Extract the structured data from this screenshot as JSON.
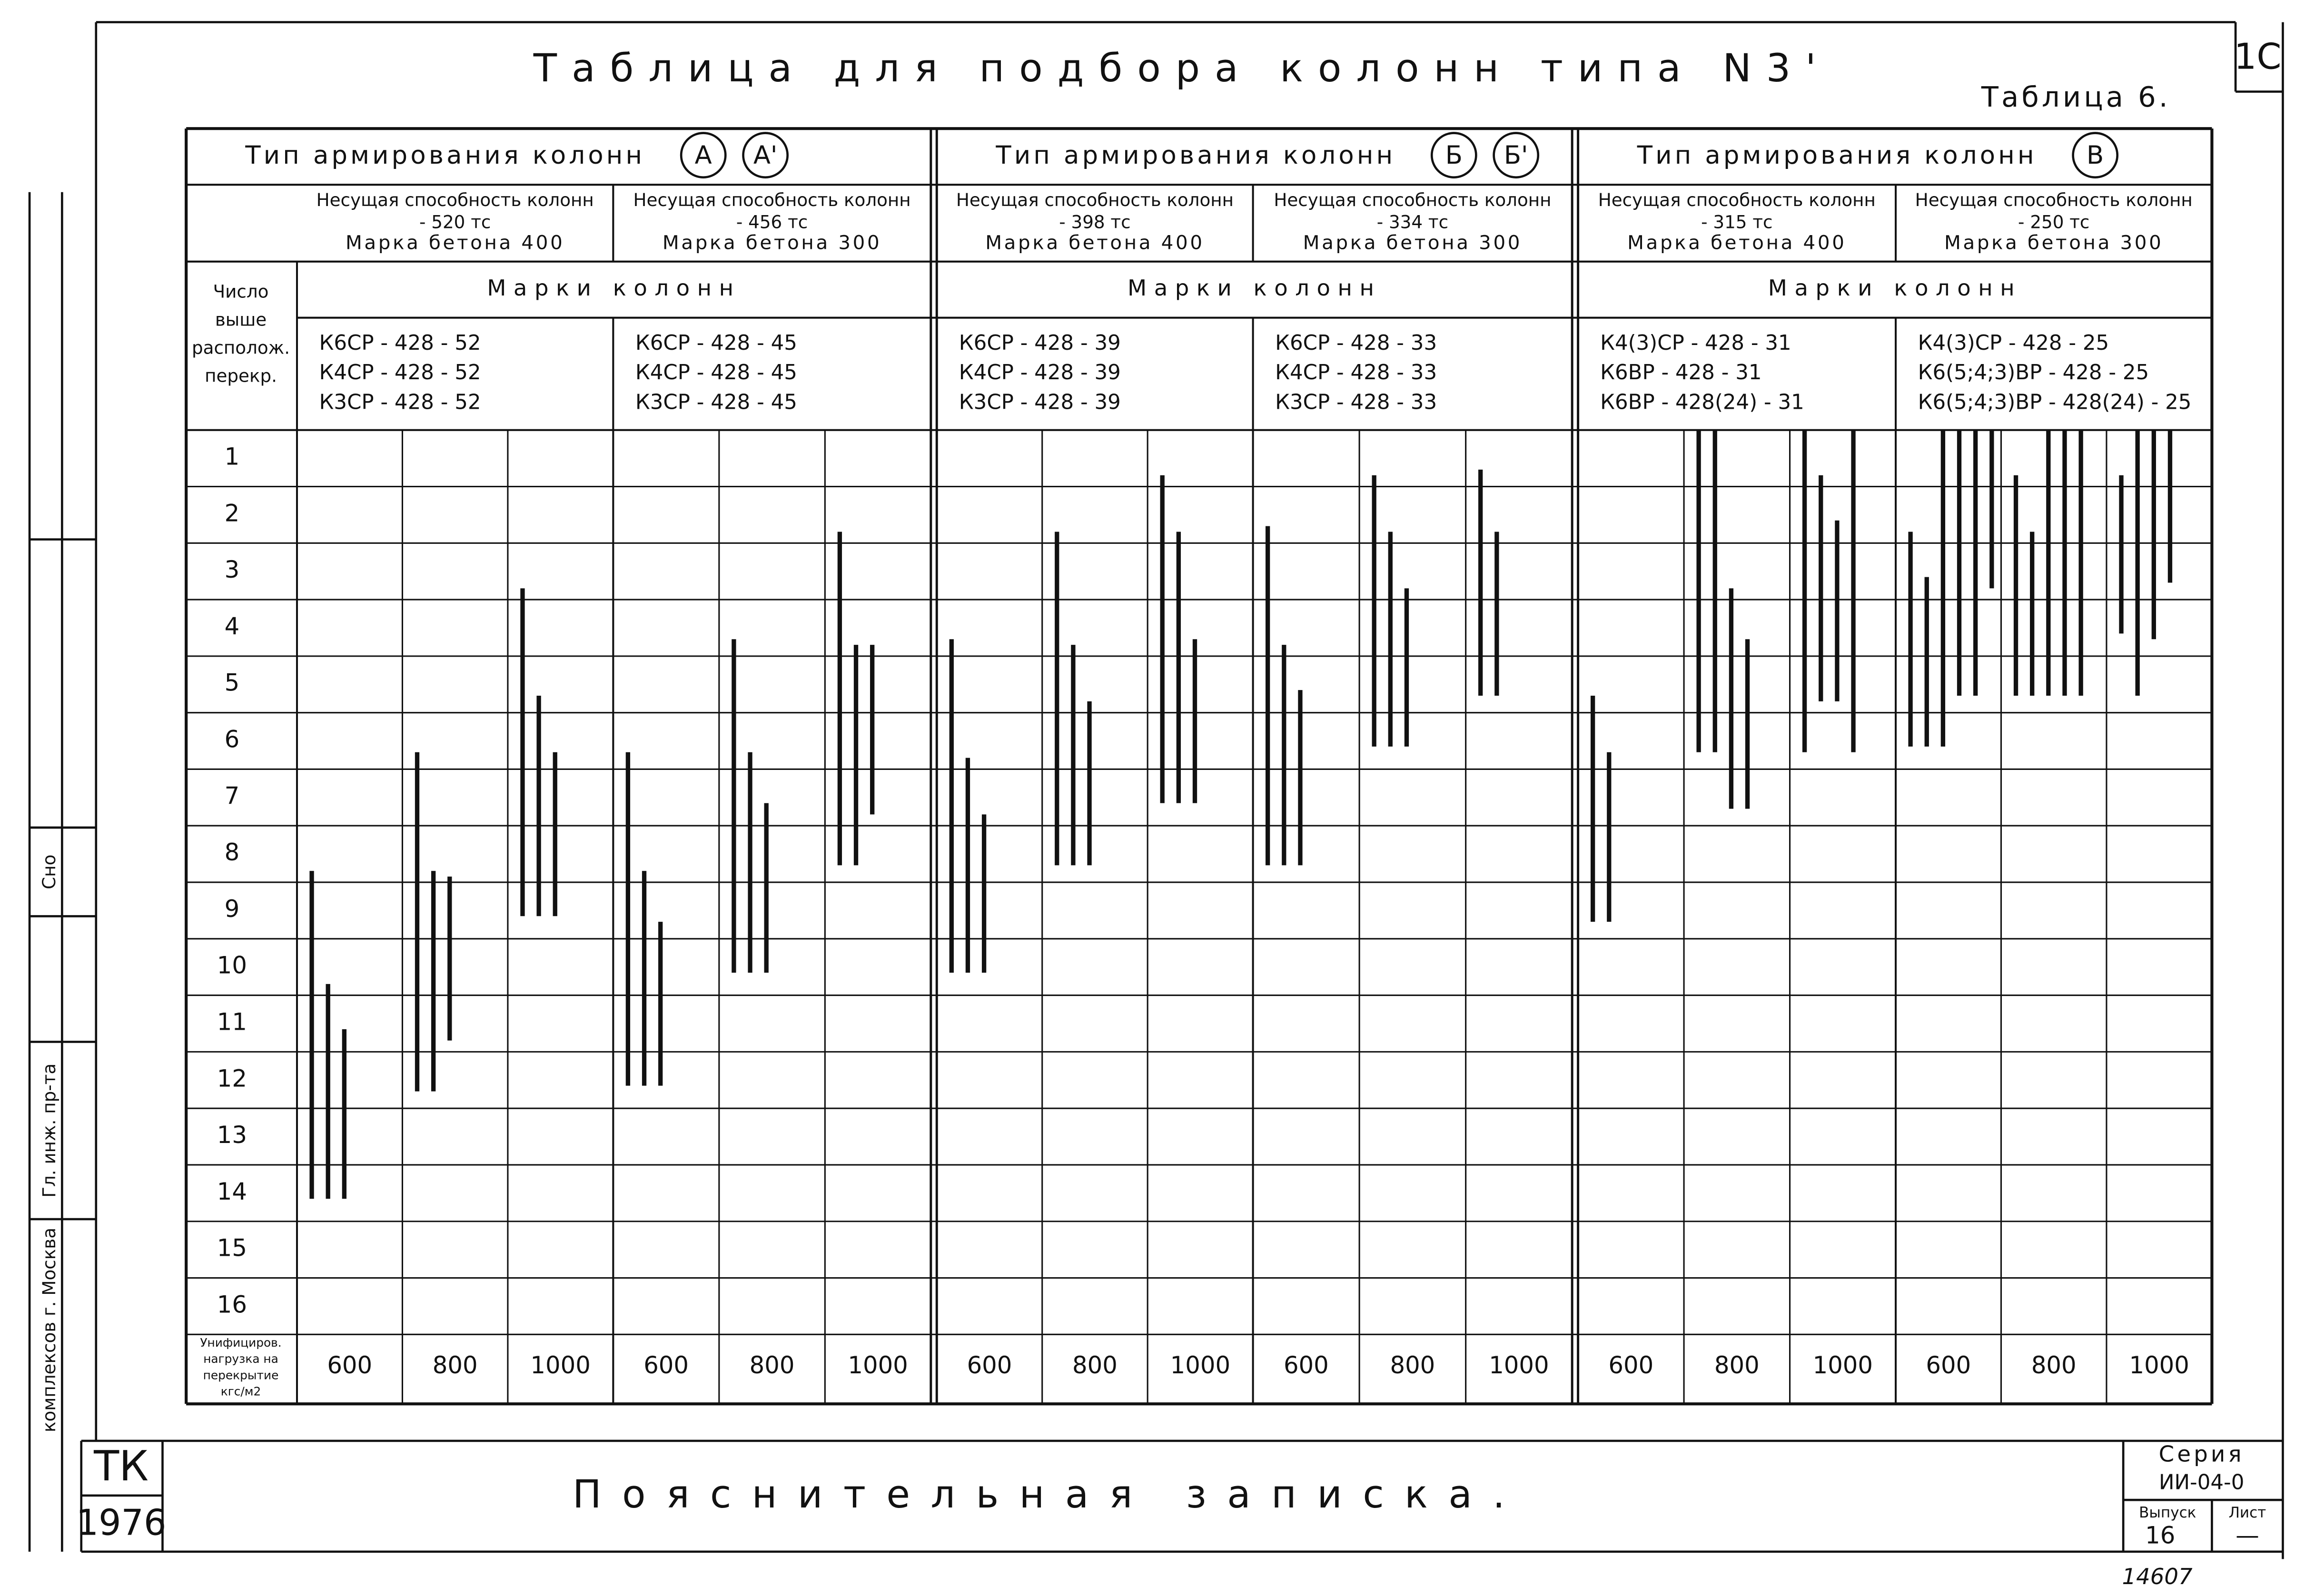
{
  "header": {
    "title": "Таблица для подбора колонн типа N3'",
    "sheet": "1С",
    "table_no": "Таблица 6."
  },
  "table": {
    "row_header": [
      "Число",
      "выше",
      "располож.",
      "перекр."
    ],
    "rows": [
      1,
      2,
      3,
      4,
      5,
      6,
      7,
      8,
      9,
      10,
      11,
      12,
      13,
      14,
      15,
      16
    ],
    "load_header": [
      "Унифициров.",
      "нагрузка на",
      "перекрытие",
      "кгс/м2"
    ],
    "groups": [
      {
        "title": "Тип армирования колонн",
        "types": [
          "А",
          "А'"
        ],
        "marks_title": "Марки колонн",
        "blocks": [
          {
            "capacity_label": "Несущая способность колонн",
            "capacity": "- 520 тс",
            "concrete": "Марка бетона 400",
            "marks": [
              "К6СР - 428 - 52",
              "К4СР - 428 - 52",
              "К3СР - 428 - 52"
            ],
            "loads": [
              {
                "value": 600,
                "bars": [
                  [
                    7.8,
                    13.6
                  ],
                  [
                    9.8,
                    13.6
                  ],
                  [
                    10.6,
                    13.6
                  ]
                ]
              },
              {
                "value": 800,
                "bars": [
                  [
                    5.7,
                    11.7
                  ],
                  [
                    7.8,
                    11.7
                  ],
                  [
                    7.9,
                    10.8
                  ]
                ]
              },
              {
                "value": 1000,
                "bars": [
                  [
                    2.8,
                    8.6
                  ],
                  [
                    4.7,
                    8.6
                  ],
                  [
                    5.7,
                    8.6
                  ]
                ]
              }
            ]
          },
          {
            "capacity_label": "Несущая способность колонн",
            "capacity": "- 456 тс",
            "concrete": "Марка бетона 300",
            "marks": [
              "К6СР - 428 - 45",
              "К4СР - 428 - 45",
              "К3СР - 428 - 45"
            ],
            "loads": [
              {
                "value": 600,
                "bars": [
                  [
                    5.7,
                    11.6
                  ],
                  [
                    7.8,
                    11.6
                  ],
                  [
                    8.7,
                    11.6
                  ]
                ]
              },
              {
                "value": 800,
                "bars": [
                  [
                    3.7,
                    9.6
                  ],
                  [
                    5.7,
                    9.6
                  ],
                  [
                    6.6,
                    9.6
                  ]
                ]
              },
              {
                "value": 1000,
                "bars": [
                  [
                    1.8,
                    7.7
                  ],
                  [
                    3.8,
                    7.7
                  ],
                  [
                    3.8,
                    6.8
                  ]
                ]
              }
            ]
          }
        ]
      },
      {
        "title": "Тип армирования колонн",
        "types": [
          "Б",
          "Б'"
        ],
        "marks_title": "Марки колонн",
        "blocks": [
          {
            "capacity_label": "Несущая способность колонн",
            "capacity": "- 398 тс",
            "concrete": "Марка бетона 400",
            "marks": [
              "К6СР - 428 - 39",
              "К4СР - 428 - 39",
              "К3СР - 428 - 39"
            ],
            "loads": [
              {
                "value": 600,
                "bars": [
                  [
                    3.7,
                    9.6
                  ],
                  [
                    5.8,
                    9.6
                  ],
                  [
                    6.8,
                    9.6
                  ]
                ]
              },
              {
                "value": 800,
                "bars": [
                  [
                    1.8,
                    7.7
                  ],
                  [
                    3.8,
                    7.7
                  ],
                  [
                    4.8,
                    7.7
                  ]
                ]
              },
              {
                "value": 1000,
                "bars": [
                  [
                    0.8,
                    6.6
                  ],
                  [
                    1.8,
                    6.6
                  ],
                  [
                    3.7,
                    6.6
                  ]
                ]
              }
            ]
          },
          {
            "capacity_label": "Несущая способность колонн",
            "capacity": "- 334 тс",
            "concrete": "Марка бетона 300",
            "marks": [
              "К6СР - 428 - 33",
              "К4СР - 428 - 33",
              "К3СР - 428 - 33"
            ],
            "loads": [
              {
                "value": 600,
                "bars": [
                  [
                    1.7,
                    7.7
                  ],
                  [
                    3.8,
                    7.7
                  ],
                  [
                    4.6,
                    7.7
                  ]
                ]
              },
              {
                "value": 800,
                "bars": [
                  [
                    0.8,
                    5.6
                  ],
                  [
                    1.8,
                    5.6
                  ],
                  [
                    2.8,
                    5.6
                  ]
                ]
              },
              {
                "value": 1000,
                "bars": [
                  [
                    0.7,
                    4.7
                  ],
                  [
                    1.8,
                    4.7
                  ]
                ]
              }
            ]
          }
        ]
      },
      {
        "title": "Тип армирования колонн",
        "types": [
          "В"
        ],
        "marks_title": "Марки колонн",
        "blocks": [
          {
            "capacity_label": "Несущая способность колонн",
            "capacity": "- 315 тс",
            "concrete": "Марка бетона 400",
            "marks": [
              "К4(3)СР - 428 - 31",
              "К6ВР - 428 - 31",
              "К6ВР - 428(24) - 31"
            ],
            "loads": [
              {
                "value": 600,
                "bars": [
                  [
                    4.7,
                    8.7
                  ],
                  [
                    5.7,
                    8.7
                  ]
                ]
              },
              {
                "value": 800,
                "bars": [
                  [
                    0,
                    5.7
                  ],
                  [
                    0,
                    5.7
                  ],
                  [
                    2.8,
                    6.7
                  ],
                  [
                    3.7,
                    6.7
                  ]
                ]
              },
              {
                "value": 1000,
                "bars": [
                  [
                    0,
                    5.7
                  ],
                  [
                    0.8,
                    4.8
                  ],
                  [
                    1.6,
                    4.8
                  ],
                  [
                    0,
                    5.7
                  ]
                ]
              }
            ]
          },
          {
            "capacity_label": "Несущая способность колонн",
            "capacity": "- 250 тс",
            "concrete": "Марка бетона 300",
            "marks": [
              "К4(3)СР - 428 - 25",
              "К6(5;4;3)ВР - 428 - 25",
              "К6(5;4;3)ВР - 428(24) - 25"
            ],
            "loads": [
              {
                "value": 600,
                "bars": [
                  [
                    1.8,
                    5.6
                  ],
                  [
                    2.6,
                    5.6
                  ],
                  [
                    0,
                    5.6
                  ],
                  [
                    0,
                    4.7
                  ],
                  [
                    0,
                    4.7
                  ],
                  [
                    0,
                    2.8
                  ]
                ]
              },
              {
                "value": 800,
                "bars": [
                  [
                    0.8,
                    4.7
                  ],
                  [
                    1.8,
                    4.7
                  ],
                  [
                    0,
                    4.7
                  ],
                  [
                    0,
                    4.7
                  ],
                  [
                    0,
                    4.7
                  ]
                ]
              },
              {
                "value": 1000,
                "bars": [
                  [
                    0.8,
                    3.6
                  ],
                  [
                    0,
                    4.7
                  ],
                  [
                    0,
                    3.7
                  ],
                  [
                    0,
                    2.7
                  ]
                ]
              }
            ]
          }
        ]
      }
    ]
  },
  "margin": {
    "org": "комплексов г. Москва",
    "role": "Гл. инж. пр-та",
    "name": "Сно"
  },
  "footer": {
    "code": "ТК",
    "year": "1976",
    "title": "Пояснительная записка.",
    "series_label": "Серия",
    "series": "ИИ-04-0",
    "issue_label": "Выпуск",
    "issue": "16",
    "sheet_label": "Лист",
    "sheet": "—",
    "number": "14607"
  }
}
